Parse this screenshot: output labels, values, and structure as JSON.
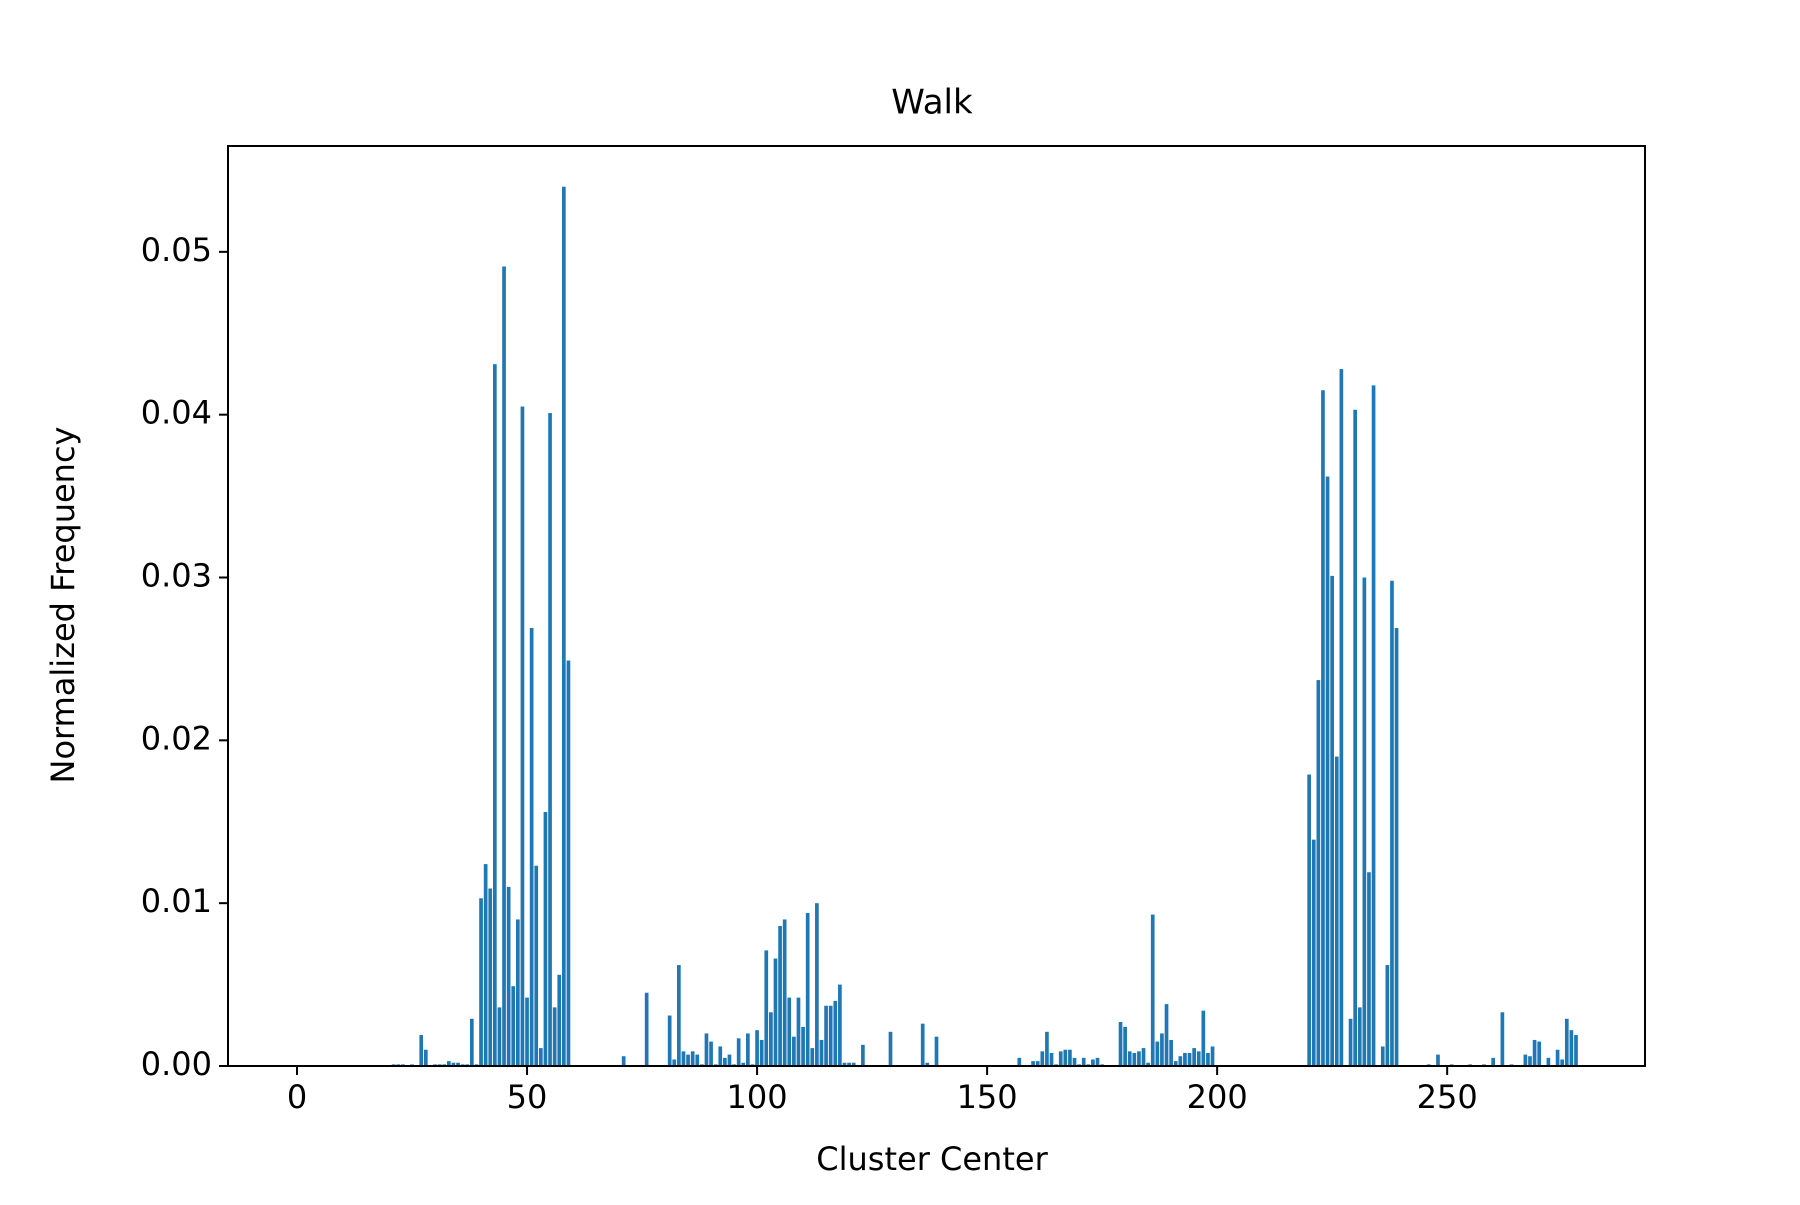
{
  "chart_data": {
    "type": "bar",
    "title": "Walk",
    "xlabel": "Cluster Center",
    "ylabel": "Normalized Frequency",
    "xlim": [
      -15,
      293
    ],
    "ylim": [
      0,
      0.0565
    ],
    "xticks": [
      0,
      50,
      100,
      150,
      200,
      250
    ],
    "xtick_labels": [
      "0",
      "50",
      "100",
      "150",
      "200",
      "250"
    ],
    "yticks": [
      0,
      0.01,
      0.02,
      0.03,
      0.04,
      0.05
    ],
    "ytick_labels": [
      "0.00",
      "0.01",
      "0.02",
      "0.03",
      "0.04",
      "0.05"
    ],
    "grid": false,
    "bar_color": "#1f77b4",
    "x": [
      21,
      22,
      23,
      25,
      27,
      28,
      30,
      31,
      32,
      33,
      34,
      35,
      36,
      37,
      38,
      39,
      40,
      41,
      42,
      43,
      44,
      45,
      46,
      47,
      48,
      49,
      50,
      51,
      52,
      53,
      54,
      55,
      56,
      57,
      58,
      59,
      71,
      76,
      81,
      82,
      83,
      84,
      85,
      86,
      87,
      88,
      89,
      90,
      91,
      92,
      93,
      94,
      95,
      96,
      97,
      98,
      99,
      100,
      101,
      102,
      103,
      104,
      105,
      106,
      107,
      108,
      109,
      110,
      111,
      112,
      113,
      114,
      115,
      116,
      117,
      118,
      119,
      120,
      121,
      123,
      129,
      136,
      137,
      139,
      157,
      160,
      161,
      162,
      163,
      164,
      165,
      166,
      167,
      168,
      169,
      170,
      171,
      172,
      173,
      174,
      175,
      179,
      180,
      181,
      182,
      183,
      184,
      185,
      186,
      187,
      188,
      189,
      190,
      191,
      192,
      193,
      194,
      195,
      196,
      197,
      198,
      199,
      220,
      221,
      222,
      223,
      224,
      225,
      226,
      227,
      229,
      230,
      231,
      232,
      233,
      234,
      236,
      237,
      238,
      239,
      246,
      248,
      251,
      255,
      258,
      260,
      262,
      264,
      267,
      268,
      269,
      270,
      272,
      274,
      275,
      276,
      277,
      278
    ],
    "values": [
      0.0001,
      0.0001,
      0.0001,
      0.0001,
      0.0019,
      0.001,
      0.0001,
      0.0001,
      0.0001,
      0.0003,
      0.0002,
      0.0002,
      0.0001,
      0.0001,
      0.0029,
      0.0001,
      0.0103,
      0.0124,
      0.0109,
      0.0431,
      0.0036,
      0.0491,
      0.011,
      0.0049,
      0.009,
      0.0405,
      0.0042,
      0.0269,
      0.0123,
      0.0011,
      0.0156,
      0.0401,
      0.0036,
      0.0056,
      0.054,
      0.0249,
      0.0006,
      0.0045,
      0.0031,
      0.0004,
      0.0062,
      0.0009,
      0.0007,
      0.0009,
      0.0007,
      0.0001,
      0.002,
      0.0015,
      0.0001,
      0.0012,
      0.0005,
      0.0007,
      0.0001,
      0.0017,
      0.0002,
      0.002,
      0.0001,
      0.0022,
      0.0016,
      0.0071,
      0.0033,
      0.0066,
      0.0086,
      0.009,
      0.0042,
      0.0018,
      0.0042,
      0.0024,
      0.0094,
      0.0011,
      0.01,
      0.0016,
      0.0037,
      0.0037,
      0.004,
      0.005,
      0.0002,
      0.0002,
      0.0002,
      0.0013,
      0.0021,
      0.0026,
      0.0002,
      0.0018,
      0.0005,
      0.0003,
      0.0003,
      0.0009,
      0.0021,
      0.0008,
      0.0001,
      0.0009,
      0.001,
      0.001,
      0.0005,
      0.0001,
      0.0005,
      0.0001,
      0.0004,
      0.0005,
      0.0001,
      0.0027,
      0.0024,
      0.0009,
      0.0008,
      0.0009,
      0.0011,
      0.0002,
      0.0093,
      0.0015,
      0.002,
      0.0038,
      0.0016,
      0.0003,
      0.0006,
      0.0008,
      0.0008,
      0.0011,
      0.0009,
      0.0034,
      0.0008,
      0.0012,
      0.0179,
      0.0139,
      0.0237,
      0.0415,
      0.0362,
      0.0301,
      0.019,
      0.0428,
      0.0029,
      0.0403,
      0.0036,
      0.03,
      0.0119,
      0.0418,
      0.0012,
      0.0062,
      0.0298,
      0.0269,
      0.0001,
      0.0007,
      0.0001,
      0.0001,
      0.0001,
      0.0005,
      0.0033,
      0.0001,
      0.0007,
      0.0006,
      0.0016,
      0.0015,
      0.0005,
      0.001,
      0.0004,
      0.0029,
      0.0022,
      0.0019
    ]
  }
}
